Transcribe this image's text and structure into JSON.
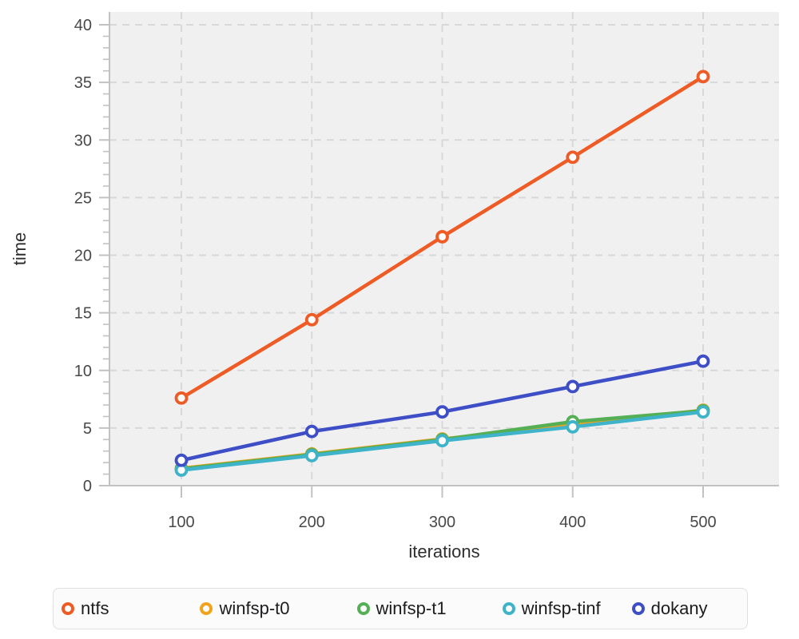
{
  "chart_data": {
    "type": "line",
    "title": "",
    "xlabel": "iterations",
    "ylabel": "time",
    "x": [
      100,
      200,
      300,
      400,
      500
    ],
    "xticks": [
      100,
      200,
      300,
      400,
      500
    ],
    "yticks": [
      0,
      5,
      10,
      15,
      20,
      25,
      30,
      35,
      40
    ],
    "ylim": [
      0,
      40
    ],
    "grid": true,
    "grid_style": "dashed",
    "legend_position": "bottom",
    "marker": "open-circle",
    "series": [
      {
        "name": "ntfs",
        "color": "#ef5b25",
        "values": [
          7.6,
          14.4,
          21.6,
          28.5,
          35.5
        ]
      },
      {
        "name": "winfsp-t0",
        "color": "#f3a21c",
        "values": [
          1.5,
          2.75,
          4.05,
          5.25,
          6.55
        ]
      },
      {
        "name": "winfsp-t1",
        "color": "#55b055",
        "values": [
          1.45,
          2.7,
          4.0,
          5.55,
          6.5
        ]
      },
      {
        "name": "winfsp-tinf",
        "color": "#3eb3c9",
        "values": [
          1.35,
          2.6,
          3.9,
          5.1,
          6.4
        ]
      },
      {
        "name": "dokany",
        "color": "#3d4ec6",
        "values": [
          2.2,
          4.7,
          6.4,
          8.6,
          10.8
        ]
      }
    ],
    "colors": {
      "plot_background": "#f0f0f1",
      "gridline": "#d8d8da",
      "axis_line": "#c2c2c4",
      "tick_label": "#48484a",
      "axis_title": "#2e2e30"
    }
  }
}
